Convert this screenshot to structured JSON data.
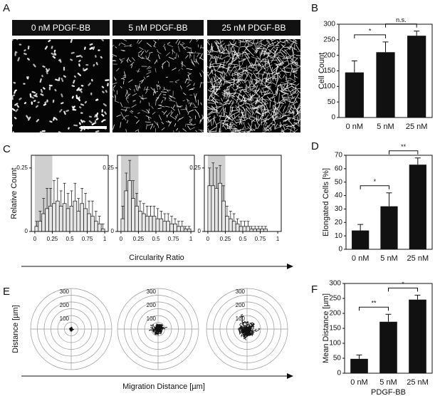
{
  "panel_labels": [
    "A",
    "B",
    "C",
    "D",
    "E",
    "F"
  ],
  "image_labels": [
    "0 nM PDGF-BB",
    "5 nM PDGF-BB",
    "25 nM PDGF-BB"
  ],
  "c_xlabel": "Circularity Ratio",
  "e_ylabel": "Distance [µm]",
  "e_xlabel": "Migration Distance [µm]",
  "chart_data": [
    {
      "type": "bar",
      "ylabel": "Cell Count",
      "categories": [
        "0 nM",
        "5 nM",
        "25 nM"
      ],
      "values": [
        145,
        210,
        263
      ],
      "errors": [
        37,
        33,
        15
      ],
      "ylim": [
        0,
        300
      ],
      "yticks": [
        0,
        50,
        100,
        150,
        200,
        250,
        300
      ],
      "color": "#111111",
      "significance": [
        {
          "pair": [
            "0 nM",
            "5 nM"
          ],
          "label": "*"
        },
        {
          "pair": [
            "5 nM",
            "25 nM"
          ],
          "label": "n.s."
        }
      ]
    },
    {
      "type": "histogram",
      "ylabel": "Relative Count",
      "bins": [
        0,
        0.05,
        0.1,
        0.15,
        0.2,
        0.25,
        0.3,
        0.35,
        0.4,
        0.45,
        0.5,
        0.55,
        0.6,
        0.65,
        0.7,
        0.75,
        0.8,
        0.85,
        0.9,
        0.95,
        1
      ],
      "values": [
        0.02,
        0.04,
        0.07,
        0.09,
        0.1,
        0.11,
        0.12,
        0.1,
        0.11,
        0.09,
        0.1,
        0.12,
        0.08,
        0.11,
        0.09,
        0.07,
        0.06,
        0.04,
        0.03,
        0.01
      ],
      "errors": [
        0.02,
        0.04,
        0.06,
        0.08,
        0.07,
        0.09,
        0.09,
        0.06,
        0.08,
        0.06,
        0.06,
        0.07,
        0.05,
        0.06,
        0.06,
        0.05,
        0.06,
        0.04,
        0.03,
        0.02
      ],
      "xlim": [
        -0.05,
        1.05
      ],
      "ylim": [
        0,
        0.3
      ],
      "xticks": [
        0,
        0.25,
        0.5,
        0.75,
        1
      ],
      "yticks": [
        0,
        0.25
      ],
      "shaded_range": [
        0,
        0.25
      ],
      "color": "#e6e6e6"
    },
    {
      "type": "histogram",
      "bins": [
        0,
        0.05,
        0.1,
        0.15,
        0.2,
        0.25,
        0.3,
        0.35,
        0.4,
        0.45,
        0.5,
        0.55,
        0.6,
        0.65,
        0.7,
        0.75,
        0.8,
        0.85,
        0.9,
        0.95,
        1
      ],
      "values": [
        0.05,
        0.16,
        0.2,
        0.13,
        0.1,
        0.08,
        0.07,
        0.06,
        0.06,
        0.06,
        0.05,
        0.05,
        0.04,
        0.04,
        0.03,
        0.03,
        0.02,
        0.02,
        0.01,
        0.01
      ],
      "errors": [
        0.05,
        0.07,
        0.08,
        0.07,
        0.05,
        0.04,
        0.04,
        0.04,
        0.04,
        0.04,
        0.04,
        0.03,
        0.03,
        0.03,
        0.03,
        0.02,
        0.02,
        0.02,
        0.01,
        0.01
      ],
      "xlim": [
        -0.05,
        1.05
      ],
      "ylim": [
        0,
        0.3
      ],
      "xticks": [
        0,
        0.25,
        0.5,
        0.75,
        1
      ],
      "yticks": [
        0,
        0.25
      ],
      "shaded_range": [
        0,
        0.25
      ],
      "color": "#e6e6e6"
    },
    {
      "type": "histogram",
      "bins": [
        0,
        0.05,
        0.1,
        0.15,
        0.2,
        0.25,
        0.3,
        0.35,
        0.4,
        0.45,
        0.5,
        0.55,
        0.6,
        0.65,
        0.7,
        0.75,
        0.8,
        0.85,
        0.9,
        0.95,
        1
      ],
      "values": [
        0.18,
        0.18,
        0.17,
        0.19,
        0.12,
        0.06,
        0.05,
        0.04,
        0.03,
        0.02,
        0.02,
        0.02,
        0.01,
        0.01,
        0.01,
        0.01,
        0.01,
        0,
        0,
        0
      ],
      "errors": [
        0.07,
        0.09,
        0.08,
        0.07,
        0.06,
        0.04,
        0.03,
        0.03,
        0.02,
        0.02,
        0.02,
        0.02,
        0.01,
        0.01,
        0.01,
        0.01,
        0.01,
        0,
        0,
        0
      ],
      "xlim": [
        -0.05,
        1.05
      ],
      "ylim": [
        0,
        0.3
      ],
      "xticks": [
        0,
        0.25,
        0.5,
        0.75,
        1
      ],
      "yticks": [
        0,
        0.25
      ],
      "shaded_range": [
        0,
        0.25
      ],
      "color": "#e6e6e6"
    },
    {
      "type": "bar",
      "ylabel": "Elongated Cells [%]",
      "categories": [
        "0 nM",
        "5 nM",
        "25 nM"
      ],
      "values": [
        14,
        32,
        63
      ],
      "errors": [
        4.5,
        10,
        5
      ],
      "ylim": [
        0,
        70
      ],
      "yticks": [
        0,
        10,
        20,
        30,
        40,
        50,
        60,
        70
      ],
      "color": "#111111",
      "significance": [
        {
          "pair": [
            "0 nM",
            "5 nM"
          ],
          "label": "*"
        },
        {
          "pair": [
            "5 nM",
            "25 nM"
          ],
          "label": "**"
        }
      ]
    },
    {
      "type": "polar",
      "rlim": [
        0,
        300
      ],
      "rticks": [
        100,
        200,
        300
      ],
      "rgrid": [
        50,
        100,
        150,
        200,
        250,
        300
      ]
    },
    {
      "type": "polar",
      "rlim": [
        0,
        300
      ],
      "rticks": [
        100,
        200,
        300
      ],
      "rgrid": [
        50,
        100,
        150,
        200,
        250,
        300
      ]
    },
    {
      "type": "polar",
      "rlim": [
        0,
        300
      ],
      "rticks": [
        100,
        200,
        300
      ],
      "rgrid": [
        50,
        100,
        150,
        200,
        250,
        300
      ]
    },
    {
      "type": "bar",
      "ylabel": "Mean Distance [µm]",
      "xlabel": "PDGF-BB",
      "categories": [
        "0 nM",
        "5 nM",
        "25 nM"
      ],
      "values": [
        48,
        172,
        246
      ],
      "errors": [
        13,
        25,
        15
      ],
      "ylim": [
        0,
        300
      ],
      "yticks": [
        0,
        50,
        100,
        150,
        200,
        250,
        300
      ],
      "color": "#111111",
      "significance": [
        {
          "pair": [
            "0 nM",
            "5 nM"
          ],
          "label": "**"
        },
        {
          "pair": [
            "5 nM",
            "25 nM"
          ],
          "label": "*"
        }
      ]
    }
  ]
}
